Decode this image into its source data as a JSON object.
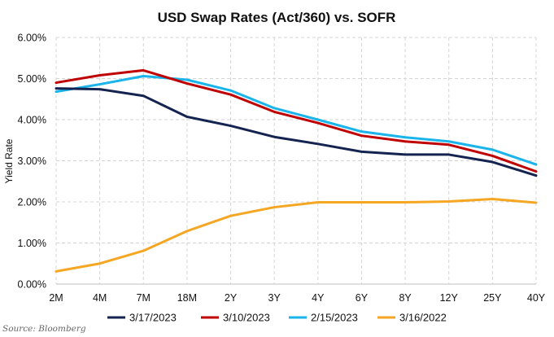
{
  "chart_data": {
    "type": "line",
    "title": "USD Swap Rates (Act/360) vs. SOFR",
    "xlabel": "",
    "ylabel": "Yield Rate",
    "categories": [
      "2M",
      "4M",
      "7M",
      "18M",
      "2Y",
      "3Y",
      "4Y",
      "6Y",
      "8Y",
      "12Y",
      "25Y",
      "40Y"
    ],
    "ylim": [
      0,
      6
    ],
    "yticks": [
      "0.00%",
      "1.00%",
      "2.00%",
      "3.00%",
      "4.00%",
      "5.00%",
      "6.00%"
    ],
    "grid": true,
    "legend_position": "bottom",
    "series": [
      {
        "name": "3/17/2023",
        "color": "#14234f",
        "values": [
          4.76,
          4.74,
          4.58,
          4.07,
          3.85,
          3.58,
          3.41,
          3.22,
          3.15,
          3.15,
          2.97,
          2.64
        ]
      },
      {
        "name": "3/10/2023",
        "color": "#c00000",
        "values": [
          4.9,
          5.08,
          5.2,
          4.88,
          4.61,
          4.19,
          3.92,
          3.61,
          3.47,
          3.39,
          3.12,
          2.74
        ]
      },
      {
        "name": "2/15/2023",
        "color": "#1ab4ea",
        "values": [
          4.68,
          4.86,
          5.06,
          4.97,
          4.71,
          4.28,
          4.0,
          3.71,
          3.57,
          3.47,
          3.27,
          2.91
        ]
      },
      {
        "name": "3/16/2022",
        "color": "#f5a623",
        "values": [
          0.31,
          0.5,
          0.81,
          1.29,
          1.66,
          1.87,
          1.99,
          1.99,
          1.99,
          2.01,
          2.07,
          1.98
        ]
      }
    ],
    "source": "Source: Bloomberg"
  }
}
